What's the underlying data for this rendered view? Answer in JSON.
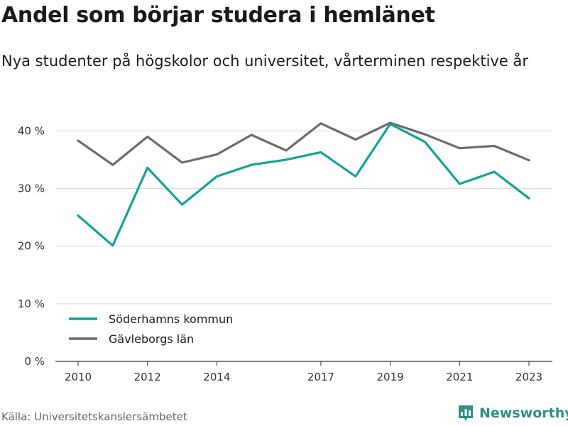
{
  "title": "Andel som börjar studera i hemlänet",
  "subtitle": "Nya studenter på högskolor och universitet, vårterminen respektive år",
  "source": "Källa: Universitetskanslersämbetet",
  "brand": {
    "name": "Newsworthy",
    "color": "#2f8f83"
  },
  "chart_data": {
    "type": "line",
    "title": "Andel som börjar studera i hemlänet",
    "subtitle": "Nya studenter på högskolor och universitet, vårterminen respektive år",
    "x": [
      2010,
      2011,
      2012,
      2013,
      2014,
      2015,
      2016,
      2017,
      2018,
      2019,
      2020,
      2021,
      2022,
      2023
    ],
    "x_ticks": [
      2010,
      2012,
      2014,
      2017,
      2019,
      2021,
      2023
    ],
    "y_ticks": [
      0,
      10,
      20,
      30,
      40
    ],
    "y_tick_suffix": " %",
    "ylim": [
      0,
      43
    ],
    "grid": true,
    "legend_position": "bottom-left",
    "series": [
      {
        "name": "Söderhamns kommun",
        "color": "#14a396",
        "values": [
          25.3,
          20.1,
          33.6,
          27.2,
          32.1,
          34.1,
          35.0,
          36.3,
          32.1,
          41.2,
          38.1,
          30.8,
          32.9,
          28.3
        ]
      },
      {
        "name": "Gävleborgs län",
        "color": "#6b6b73",
        "values": [
          38.3,
          34.1,
          39.0,
          34.5,
          35.9,
          39.3,
          36.6,
          41.3,
          38.5,
          41.4,
          39.4,
          37.0,
          37.4,
          34.9
        ]
      }
    ]
  }
}
